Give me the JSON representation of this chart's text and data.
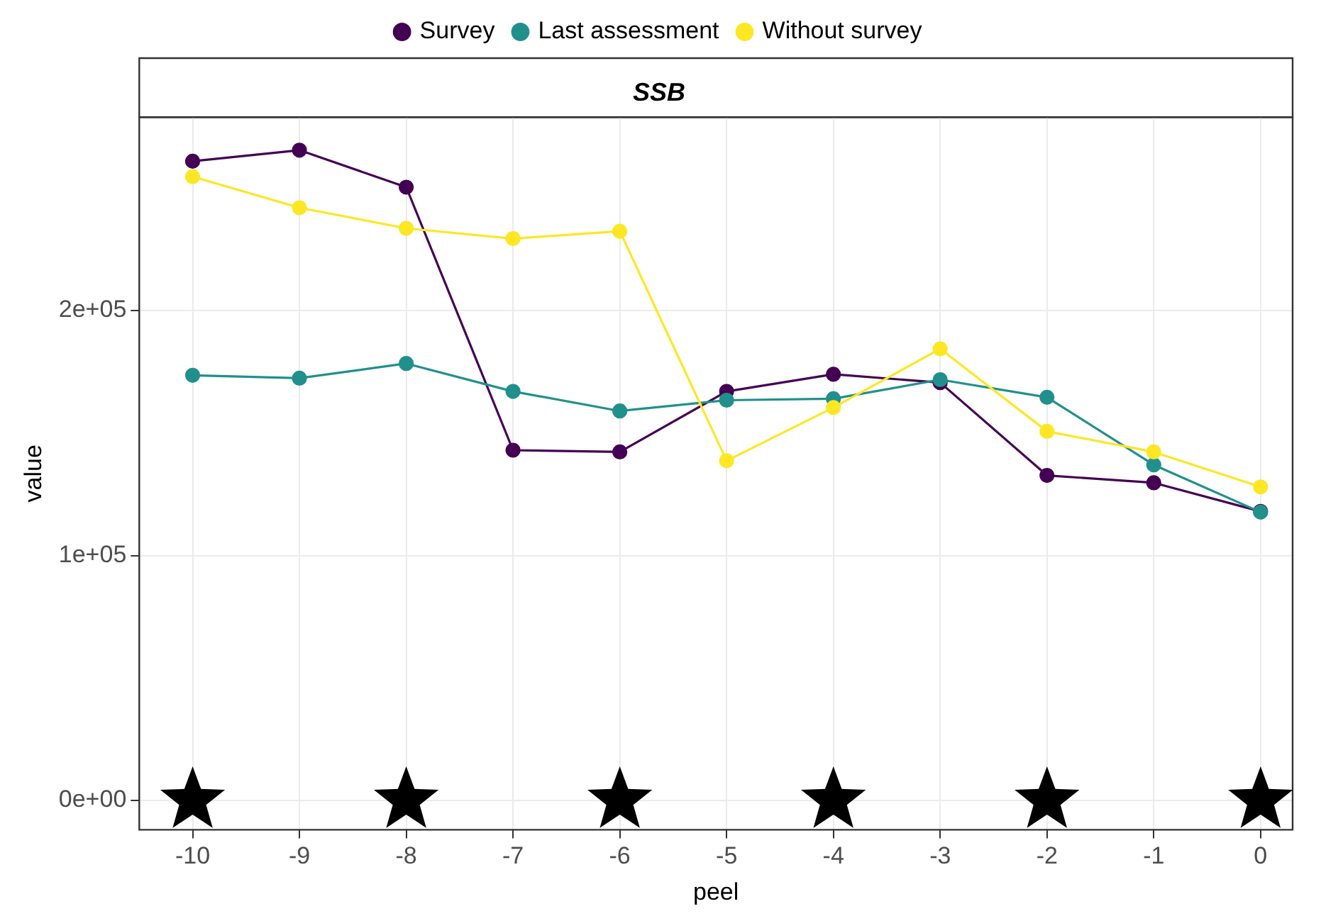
{
  "chart_data": {
    "type": "line",
    "title": "SSB",
    "xlabel": "peel",
    "ylabel": "value",
    "x": [
      -10,
      -9,
      -8,
      -7,
      -6,
      -5,
      -4,
      -3,
      -2,
      -1,
      0
    ],
    "series": [
      {
        "name": "Survey",
        "color": "#440154",
        "values": [
          261000,
          265500,
          250400,
          143000,
          142300,
          167000,
          174000,
          170600,
          132700,
          129700,
          118000
        ]
      },
      {
        "name": "Last assessment",
        "color": "#21908c",
        "values": [
          173600,
          172400,
          178400,
          167000,
          159000,
          163400,
          164000,
          171800,
          164600,
          137000,
          117700
        ]
      },
      {
        "name": "Without survey",
        "color": "#fde725",
        "values": [
          254700,
          242000,
          233600,
          229400,
          232400,
          138700,
          160400,
          184400,
          150700,
          142300,
          128000
        ]
      },
      {
        "type": "scatter",
        "marker": "star",
        "color": "#000000",
        "x": [
          -10,
          -8,
          -6,
          -4,
          -2,
          0
        ],
        "values": [
          0,
          0,
          0,
          0,
          0,
          0
        ]
      }
    ],
    "marker": "circle",
    "line_style": "solid",
    "xlim": [
      -10.5,
      0.3
    ],
    "xticks": [
      -10,
      -9,
      -8,
      -7,
      -6,
      -5,
      -4,
      -3,
      -2,
      -1,
      0
    ],
    "ylim": [
      -12000,
      279000
    ],
    "yticks": [
      {
        "value": 0,
        "label": "0e+00"
      },
      {
        "value": 100000,
        "label": "1e+05"
      },
      {
        "value": 200000,
        "label": "2e+05"
      }
    ],
    "grid": true,
    "legend": "top"
  }
}
